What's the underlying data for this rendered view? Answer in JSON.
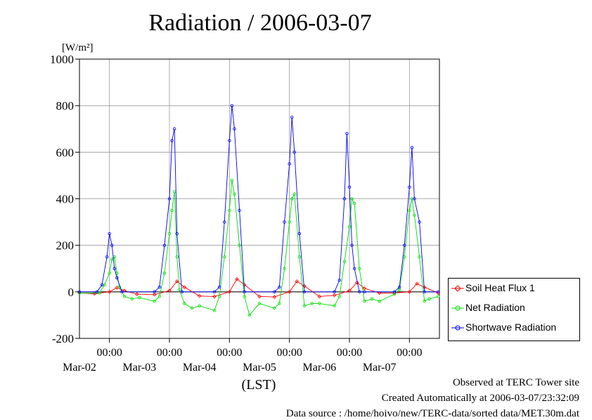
{
  "chart_data": {
    "type": "line",
    "title": "Radiation / 2006-03-07",
    "ylabel": "[W/m²]",
    "xlabel": "(LST)",
    "ylim": [
      -200,
      1000
    ],
    "yticks": [
      -200,
      0,
      200,
      400,
      600,
      800,
      1000
    ],
    "xlim": [
      "2006-03-02 00:00",
      "2006-03-08 00:00"
    ],
    "xticks": [
      {
        "time": "2006-03-02 12:00",
        "label": "00:00",
        "date": "Mar-02"
      },
      {
        "time": "2006-03-03 12:00",
        "label": "00:00",
        "date": "Mar-03"
      },
      {
        "time": "2006-03-04 12:00",
        "label": "00:00",
        "date": "Mar-04"
      },
      {
        "time": "2006-03-05 12:00",
        "label": "00:00",
        "date": "Mar-05"
      },
      {
        "time": "2006-03-06 12:00",
        "label": "00:00",
        "date": "Mar-06"
      },
      {
        "time": "2006-03-07 12:00",
        "label": "00:00",
        "date": "Mar-07"
      }
    ],
    "grid": true,
    "legend_position": "right-bottom",
    "series": [
      {
        "name": "Soil Heat Flux 1",
        "color": "#ff0000",
        "marker": "diamond",
        "x": [
          "2006-03-02 00:00",
          "2006-03-02 06:00",
          "2006-03-02 12:00",
          "2006-03-02 15:00",
          "2006-03-02 18:00",
          "2006-03-02 23:00",
          "2006-03-03 06:00",
          "2006-03-03 12:00",
          "2006-03-03 15:00",
          "2006-03-03 18:00",
          "2006-03-04 00:00",
          "2006-03-04 06:00",
          "2006-03-04 12:00",
          "2006-03-04 15:00",
          "2006-03-04 18:00",
          "2006-03-05 00:00",
          "2006-03-05 06:00",
          "2006-03-05 12:00",
          "2006-03-05 15:00",
          "2006-03-05 18:00",
          "2006-03-06 00:00",
          "2006-03-06 06:00",
          "2006-03-06 12:00",
          "2006-03-06 15:00",
          "2006-03-06 18:00",
          "2006-03-07 00:00",
          "2006-03-07 06:00",
          "2006-03-07 12:00",
          "2006-03-07 15:00",
          "2006-03-07 18:00",
          "2006-03-07 23:30"
        ],
        "values": [
          -5,
          -8,
          0,
          18,
          5,
          -10,
          -12,
          5,
          45,
          20,
          -18,
          -20,
          0,
          55,
          30,
          -20,
          -22,
          0,
          45,
          25,
          -20,
          -15,
          5,
          40,
          15,
          -5,
          -5,
          0,
          35,
          20,
          -5
        ]
      },
      {
        "name": "Net Radiation",
        "color": "#00e000",
        "marker": "circle",
        "x": [
          "2006-03-02 00:00",
          "2006-03-02 08:00",
          "2006-03-02 10:00",
          "2006-03-02 12:00",
          "2006-03-02 13:00",
          "2006-03-02 14:00",
          "2006-03-02 15:00",
          "2006-03-02 16:00",
          "2006-03-02 18:00",
          "2006-03-02 21:00",
          "2006-03-03 00:00",
          "2006-03-03 06:00",
          "2006-03-03 08:00",
          "2006-03-03 10:00",
          "2006-03-03 12:00",
          "2006-03-03 13:00",
          "2006-03-03 14:00",
          "2006-03-03 15:00",
          "2006-03-03 16:00",
          "2006-03-03 18:00",
          "2006-03-03 21:00",
          "2006-03-04 00:00",
          "2006-03-04 06:00",
          "2006-03-04 08:00",
          "2006-03-04 10:00",
          "2006-03-04 12:00",
          "2006-03-04 13:00",
          "2006-03-04 14:00",
          "2006-03-04 16:00",
          "2006-03-04 18:00",
          "2006-03-04 20:00",
          "2006-03-05 00:00",
          "2006-03-05 06:00",
          "2006-03-05 08:00",
          "2006-03-05 10:00",
          "2006-03-05 12:00",
          "2006-03-05 13:00",
          "2006-03-05 14:00",
          "2006-03-05 16:00",
          "2006-03-05 18:00",
          "2006-03-05 21:00",
          "2006-03-06 00:00",
          "2006-03-06 06:00",
          "2006-03-06 08:00",
          "2006-03-06 10:00",
          "2006-03-06 12:00",
          "2006-03-06 13:00",
          "2006-03-06 14:00",
          "2006-03-06 16:00",
          "2006-03-06 18:00",
          "2006-03-06 21:00",
          "2006-03-07 00:00",
          "2006-03-07 06:00",
          "2006-03-07 08:00",
          "2006-03-07 10:00",
          "2006-03-07 12:00",
          "2006-03-07 13:00",
          "2006-03-07 14:00",
          "2006-03-07 16:00",
          "2006-03-07 18:00",
          "2006-03-07 20:00",
          "2006-03-07 23:30"
        ],
        "values": [
          -5,
          -5,
          30,
          80,
          140,
          150,
          80,
          20,
          -20,
          -30,
          -25,
          -40,
          -20,
          80,
          250,
          350,
          430,
          150,
          10,
          -50,
          -70,
          -60,
          -80,
          -20,
          150,
          350,
          480,
          420,
          200,
          -20,
          -100,
          -50,
          -70,
          -50,
          100,
          300,
          400,
          420,
          150,
          -60,
          -50,
          -50,
          -60,
          -20,
          130,
          280,
          400,
          380,
          100,
          -40,
          -30,
          -40,
          -10,
          10,
          150,
          350,
          400,
          330,
          150,
          -40,
          -30,
          -20
        ]
      },
      {
        "name": "Shortwave Radiation",
        "color": "#0000ff",
        "marker": "circle",
        "x": [
          "2006-03-02 00:00",
          "2006-03-02 07:00",
          "2006-03-02 09:00",
          "2006-03-02 11:00",
          "2006-03-02 12:00",
          "2006-03-02 13:00",
          "2006-03-02 14:00",
          "2006-03-02 15:00",
          "2006-03-02 17:00",
          "2006-03-03 06:00",
          "2006-03-03 08:00",
          "2006-03-03 10:00",
          "2006-03-03 12:00",
          "2006-03-03 13:00",
          "2006-03-03 14:00",
          "2006-03-03 15:00",
          "2006-03-03 17:00",
          "2006-03-04 06:00",
          "2006-03-04 08:00",
          "2006-03-04 10:00",
          "2006-03-04 12:00",
          "2006-03-04 13:00",
          "2006-03-04 14:00",
          "2006-03-04 16:00",
          "2006-03-04 18:00",
          "2006-03-05 06:00",
          "2006-03-05 08:00",
          "2006-03-05 10:00",
          "2006-03-05 12:00",
          "2006-03-05 13:00",
          "2006-03-05 14:00",
          "2006-03-05 16:00",
          "2006-03-05 18:00",
          "2006-03-06 06:00",
          "2006-03-06 08:00",
          "2006-03-06 10:00",
          "2006-03-06 11:00",
          "2006-03-06 12:00",
          "2006-03-06 13:00",
          "2006-03-06 14:00",
          "2006-03-06 16:00",
          "2006-03-06 18:00",
          "2006-03-07 06:00",
          "2006-03-07 08:00",
          "2006-03-07 10:00",
          "2006-03-07 12:00",
          "2006-03-07 13:00",
          "2006-03-07 14:00",
          "2006-03-07 16:00",
          "2006-03-07 18:00",
          "2006-03-07 23:30"
        ],
        "values": [
          0,
          0,
          30,
          150,
          250,
          200,
          100,
          60,
          0,
          0,
          20,
          200,
          400,
          650,
          700,
          250,
          0,
          0,
          20,
          300,
          650,
          800,
          700,
          350,
          0,
          0,
          20,
          300,
          550,
          750,
          600,
          250,
          0,
          0,
          50,
          400,
          680,
          450,
          200,
          100,
          0,
          0,
          0,
          20,
          200,
          450,
          620,
          400,
          300,
          0,
          0
        ]
      }
    ]
  },
  "footer": {
    "observed": "Observed at TERC Tower site",
    "created": "Created Automatically at 2006-03-07/23:32:09",
    "source": "Data source : /home/hoivo/new/TERC-data/sorted  data/MET.30m.dat"
  }
}
